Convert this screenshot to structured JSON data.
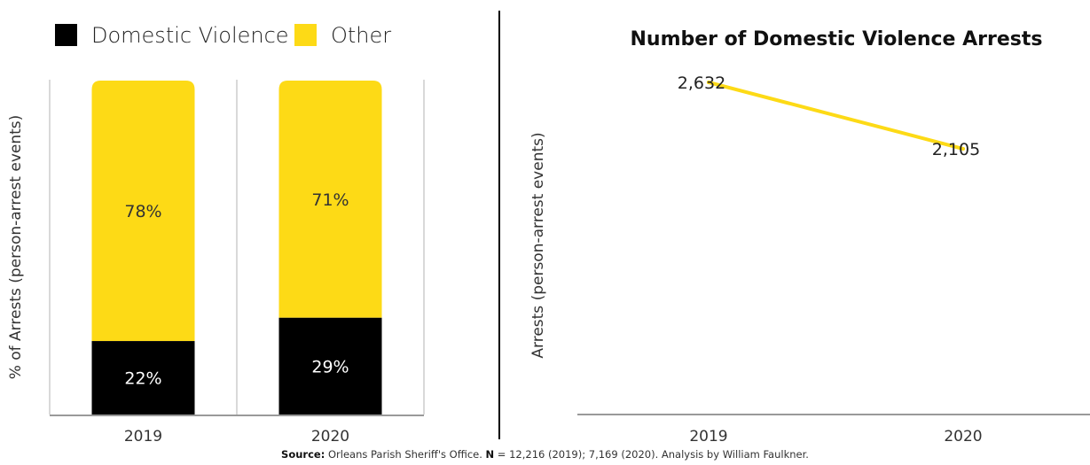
{
  "chart_data": [
    {
      "type": "bar",
      "stacked": true,
      "percent": true,
      "categories": [
        "2019",
        "2020"
      ],
      "series": [
        {
          "name": "Domestic Violence",
          "values": [
            22,
            29
          ],
          "labels": [
            "22%",
            "29%"
          ],
          "color": "#000000",
          "label_color": "#ffffff"
        },
        {
          "name": "Other",
          "values": [
            78,
            71
          ],
          "labels": [
            "78%",
            "71%"
          ],
          "color": "#FDDA16",
          "label_color": "#333333"
        }
      ],
      "ylabel": "% of Arrests (person-arrest events)",
      "ylim": [
        0,
        100
      ],
      "legend": "top-left",
      "grid": false
    },
    {
      "type": "line",
      "title": "Number of Domestic Violence Arrests",
      "x": [
        "2019",
        "2020"
      ],
      "series": [
        {
          "values": [
            2632,
            2105
          ],
          "labels": [
            "2,632",
            "2,105"
          ],
          "color": "#FDDA16"
        }
      ],
      "ylabel": "Arrests (person-arrest events)",
      "ylim": [
        0,
        2800
      ],
      "grid": false
    }
  ],
  "source": {
    "source_label": "Source:",
    "source_text": " Orleans Parish Sheriff's Office. ",
    "n_label": "N",
    "n_text": " = 12,216 (2019); 7,169 (2020). Analysis by William Faulkner."
  }
}
